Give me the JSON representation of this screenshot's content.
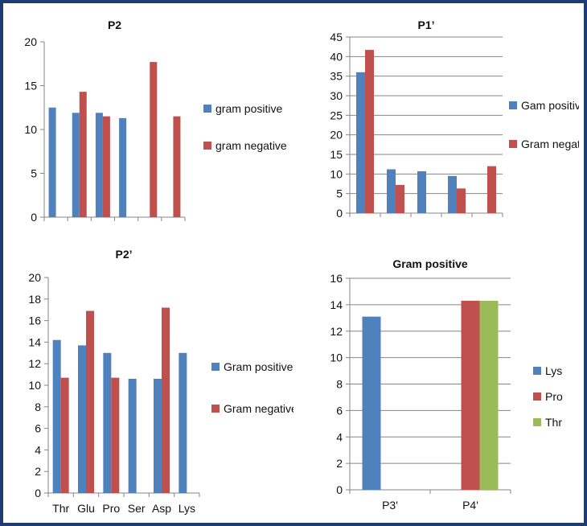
{
  "chart_data": [
    {
      "type": "bar",
      "title": "P2",
      "ylim": [
        0,
        20
      ],
      "yticks": [
        0,
        5,
        10,
        15,
        20
      ],
      "categories": [
        "",
        "",
        "",
        "",
        "",
        ""
      ],
      "gridlines": false,
      "legend_position": "right",
      "series": [
        {
          "name": "gram positive",
          "color": "#4f81bd",
          "values": [
            12.5,
            11.9,
            11.9,
            11.3,
            null,
            null
          ]
        },
        {
          "name": "gram negative",
          "color": "#c0504d",
          "values": [
            null,
            14.3,
            11.5,
            null,
            17.7,
            11.5
          ]
        }
      ]
    },
    {
      "type": "bar",
      "title": "P1’",
      "ylim": [
        0,
        45
      ],
      "yticks": [
        0,
        5,
        10,
        15,
        20,
        25,
        30,
        35,
        40,
        45
      ],
      "categories": [
        "",
        "",
        "",
        "",
        ""
      ],
      "gridlines": true,
      "legend_position": "right",
      "series": [
        {
          "name": "Gam positive",
          "color": "#4f81bd",
          "values": [
            36,
            11.2,
            10.7,
            9.5,
            null
          ]
        },
        {
          "name": "Gram negative",
          "color": "#c0504d",
          "values": [
            41.7,
            7.2,
            null,
            6.3,
            12
          ]
        }
      ]
    },
    {
      "type": "bar",
      "title": "P2’",
      "ylim": [
        0,
        20
      ],
      "yticks": [
        0,
        2,
        4,
        6,
        8,
        10,
        12,
        14,
        16,
        18,
        20
      ],
      "categories": [
        "Thr",
        "Glu",
        "Pro",
        "Ser",
        "Asp",
        "Lys"
      ],
      "gridlines": false,
      "legend_position": "right",
      "series": [
        {
          "name": "Gram positive",
          "color": "#4f81bd",
          "values": [
            14.2,
            13.7,
            13,
            10.6,
            10.6,
            13
          ]
        },
        {
          "name": "Gram negative",
          "color": "#c0504d",
          "values": [
            10.7,
            16.9,
            10.7,
            null,
            17.2,
            null
          ]
        }
      ]
    },
    {
      "type": "bar",
      "title": "Gram positive",
      "ylim": [
        0,
        16
      ],
      "yticks": [
        0,
        2,
        4,
        6,
        8,
        10,
        12,
        14,
        16
      ],
      "categories": [
        "P3'",
        "P4'"
      ],
      "gridlines": true,
      "legend_position": "right",
      "series": [
        {
          "name": "Lys",
          "color": "#4f81bd",
          "values": [
            13.1,
            null
          ]
        },
        {
          "name": "Pro",
          "color": "#c0504d",
          "values": [
            null,
            14.3
          ]
        },
        {
          "name": "Thr",
          "color": "#9bbb59",
          "values": [
            null,
            14.3
          ]
        }
      ]
    }
  ]
}
